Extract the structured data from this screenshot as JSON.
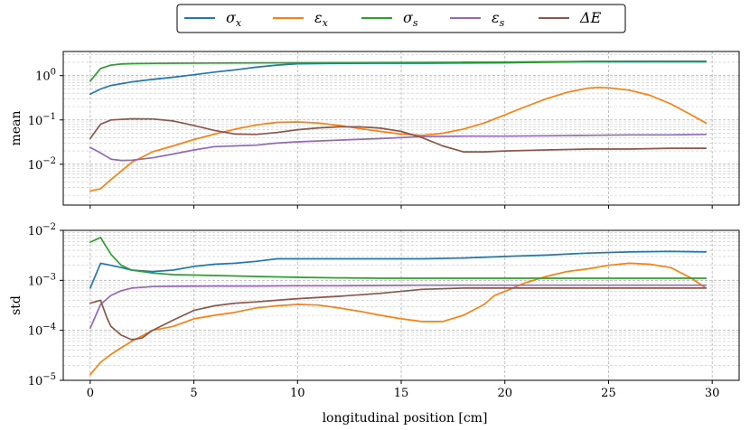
{
  "chart_data": {
    "type": "line",
    "xlabel": "longitudinal position [cm]",
    "xlim": [
      -1.3,
      31.3
    ],
    "xticks": [
      0,
      5,
      10,
      15,
      20,
      25,
      30
    ],
    "legend": {
      "placement": "top-center",
      "entries": [
        {
          "key": "sigma_x",
          "label": "σ_x",
          "display": "σx",
          "color": "#1f77b4"
        },
        {
          "key": "eps_x",
          "label": "ε_x",
          "display": "εx",
          "color": "#ff7f0e"
        },
        {
          "key": "sigma_s",
          "label": "σ_s",
          "display": "σs",
          "color": "#2ca02c"
        },
        {
          "key": "eps_s",
          "label": "ε_s",
          "display": "εs",
          "color": "#9467bd"
        },
        {
          "key": "dE",
          "label": "ΔE",
          "display": "ΔE",
          "color": "#8c564b"
        }
      ]
    },
    "panels": [
      {
        "name": "mean",
        "ylabel": "mean",
        "yscale": "log",
        "ylim": [
          0.0012,
          3.5
        ],
        "yticks": [
          {
            "exp": -2,
            "value": 0.01,
            "label": "10−2"
          },
          {
            "exp": -1,
            "value": 0.1,
            "label": "10−1"
          },
          {
            "exp": 0,
            "value": 1,
            "label": "100"
          }
        ],
        "series": [
          {
            "key": "sigma_x",
            "x": [
              0,
              0.5,
              1,
              2,
              3,
              4,
              5,
              6,
              7,
              8,
              9,
              10,
              12,
              14,
              16,
              18,
              20,
              22,
              24,
              26,
              28,
              29.7
            ],
            "values": [
              0.38,
              0.5,
              0.6,
              0.72,
              0.82,
              0.92,
              1.05,
              1.2,
              1.35,
              1.55,
              1.72,
              1.85,
              1.88,
              1.9,
              1.9,
              1.92,
              1.95,
              2.0,
              2.05,
              2.05,
              2.05,
              2.05
            ]
          },
          {
            "key": "eps_x",
            "x": [
              0,
              0.5,
              1,
              2,
              3,
              4,
              5,
              6,
              7,
              8,
              9,
              10,
              11,
              12,
              13,
              14,
              15,
              16,
              17,
              18,
              19,
              20,
              21,
              22,
              23,
              24,
              24.5,
              25,
              26,
              27,
              28,
              29,
              29.7
            ],
            "values": [
              0.0025,
              0.0028,
              0.0045,
              0.011,
              0.019,
              0.026,
              0.036,
              0.048,
              0.062,
              0.077,
              0.088,
              0.09,
              0.085,
              0.075,
              0.064,
              0.055,
              0.048,
              0.045,
              0.05,
              0.062,
              0.085,
              0.13,
              0.2,
              0.3,
              0.42,
              0.52,
              0.54,
              0.53,
              0.47,
              0.36,
              0.23,
              0.13,
              0.085
            ]
          },
          {
            "key": "sigma_s",
            "x": [
              0,
              0.5,
              1,
              1.5,
              2,
              3,
              4,
              6,
              8,
              10,
              12,
              14,
              16,
              18,
              20,
              22,
              24,
              26,
              28,
              29.7
            ],
            "values": [
              0.75,
              1.45,
              1.72,
              1.82,
              1.86,
              1.88,
              1.9,
              1.92,
              1.94,
              1.95,
              1.96,
              1.97,
              1.98,
              2.0,
              2.02,
              2.05,
              2.1,
              2.12,
              2.12,
              2.12
            ]
          },
          {
            "key": "eps_s",
            "x": [
              0,
              0.5,
              1,
              1.5,
              2,
              3,
              4,
              5,
              6,
              7,
              8,
              9,
              10,
              12,
              14,
              16,
              18,
              20,
              22,
              24,
              26,
              28,
              29.7
            ],
            "values": [
              0.024,
              0.018,
              0.013,
              0.0122,
              0.0123,
              0.014,
              0.017,
              0.021,
              0.025,
              0.026,
              0.027,
              0.03,
              0.032,
              0.035,
              0.038,
              0.042,
              0.043,
              0.043,
              0.044,
              0.045,
              0.046,
              0.046,
              0.047
            ]
          },
          {
            "key": "dE",
            "x": [
              0,
              0.5,
              1,
              2,
              3,
              4,
              5,
              6,
              7,
              8,
              9,
              10,
              11,
              12,
              13,
              14,
              15,
              16,
              17,
              18,
              19,
              20,
              22,
              24,
              26,
              28,
              29.7
            ],
            "values": [
              0.038,
              0.08,
              0.1,
              0.106,
              0.105,
              0.095,
              0.075,
              0.058,
              0.048,
              0.047,
              0.052,
              0.06,
              0.066,
              0.07,
              0.07,
              0.065,
              0.055,
              0.04,
              0.026,
              0.019,
              0.019,
              0.02,
              0.021,
              0.022,
              0.022,
              0.023,
              0.023
            ]
          }
        ]
      },
      {
        "name": "std",
        "ylabel": "std",
        "yscale": "log",
        "ylim": [
          1e-05,
          0.01
        ],
        "yticks": [
          {
            "exp": -5,
            "value": 1e-05,
            "label": "10−5"
          },
          {
            "exp": -4,
            "value": 0.0001,
            "label": "10−4"
          },
          {
            "exp": -3,
            "value": 0.001,
            "label": "10−3"
          },
          {
            "exp": -2,
            "value": 0.01,
            "label": "10−2"
          }
        ],
        "series": [
          {
            "key": "sigma_x",
            "x": [
              0,
              0.5,
              1,
              1.5,
              2,
              3,
              4,
              5,
              6,
              7,
              8,
              9,
              10,
              12,
              14,
              16,
              18,
              20,
              22,
              24,
              26,
              28,
              29.7
            ],
            "values": [
              0.0007,
              0.0022,
              0.002,
              0.0018,
              0.0016,
              0.0015,
              0.0016,
              0.0019,
              0.0021,
              0.0022,
              0.0024,
              0.0027,
              0.0027,
              0.0027,
              0.0027,
              0.0027,
              0.0028,
              0.003,
              0.0032,
              0.0035,
              0.0037,
              0.0038,
              0.0037
            ]
          },
          {
            "key": "eps_x",
            "x": [
              0,
              0.5,
              1,
              1.5,
              2,
              3,
              4,
              5,
              6,
              7,
              8,
              9,
              10,
              11,
              12,
              13,
              14,
              15,
              16,
              17,
              18,
              19,
              19.5,
              20,
              21,
              22,
              23,
              24,
              25,
              26,
              27,
              28,
              29,
              29.7
            ],
            "values": [
              1.3e-05,
              2.3e-05,
              3.3e-05,
              4.5e-05,
              6e-05,
              0.0001,
              0.00012,
              0.00017,
              0.0002,
              0.00023,
              0.00028,
              0.00031,
              0.00033,
              0.00032,
              0.00028,
              0.00024,
              0.0002,
              0.00017,
              0.00015,
              0.00015,
              0.0002,
              0.00033,
              0.0005,
              0.0006,
              0.0009,
              0.0012,
              0.0015,
              0.0017,
              0.002,
              0.0022,
              0.0021,
              0.0018,
              0.0011,
              0.0007
            ]
          },
          {
            "key": "sigma_s",
            "x": [
              0,
              0.5,
              1,
              1.5,
              2,
              3,
              4,
              6,
              8,
              10,
              12,
              14,
              16,
              18,
              20,
              22,
              24,
              26,
              28,
              29.7
            ],
            "values": [
              0.0058,
              0.0072,
              0.0033,
              0.002,
              0.0016,
              0.0014,
              0.0013,
              0.00125,
              0.0012,
              0.00115,
              0.00112,
              0.0011,
              0.0011,
              0.0011,
              0.0011,
              0.0011,
              0.0011,
              0.0011,
              0.0011,
              0.0011
            ]
          },
          {
            "key": "eps_s",
            "x": [
              0,
              0.5,
              1,
              1.5,
              2,
              3,
              4,
              6,
              8,
              10,
              12,
              14,
              16,
              18,
              20,
              22,
              24,
              26,
              28,
              29.7
            ],
            "values": [
              0.00011,
              0.00033,
              0.0005,
              0.00062,
              0.0007,
              0.00075,
              0.00076,
              0.00077,
              0.00077,
              0.00078,
              0.00078,
              0.00079,
              0.0008,
              0.0008,
              0.0008,
              0.0008,
              0.0008,
              0.0008,
              0.0008,
              0.0008
            ]
          },
          {
            "key": "dE",
            "x": [
              0,
              0.5,
              0.8,
              1,
              1.5,
              2,
              2.5,
              3,
              4,
              5,
              6,
              7,
              8,
              9,
              10,
              12,
              14,
              16,
              18,
              20,
              22,
              24,
              26,
              28,
              29.7
            ],
            "values": [
              0.00035,
              0.0004,
              0.00018,
              0.00012,
              8e-05,
              6.5e-05,
              7e-05,
              0.0001,
              0.00016,
              0.00025,
              0.00031,
              0.00035,
              0.00037,
              0.0004,
              0.00043,
              0.00048,
              0.00055,
              0.00066,
              0.0007,
              0.0007,
              0.0007,
              0.0007,
              0.0007,
              0.0007,
              0.0007
            ]
          }
        ]
      }
    ]
  }
}
